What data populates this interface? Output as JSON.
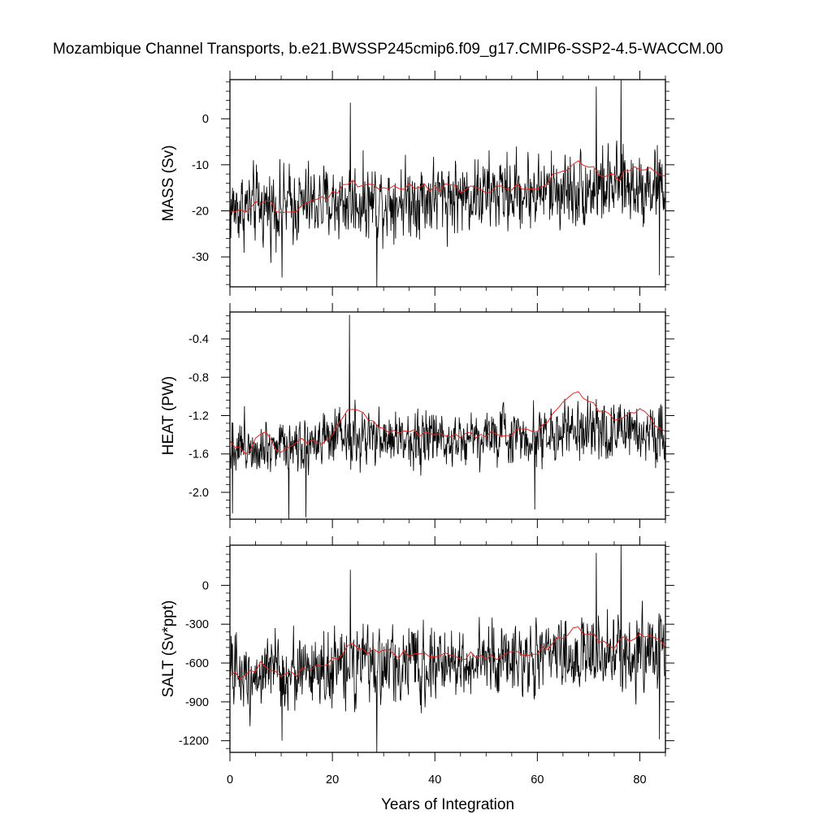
{
  "title": "Mozambique Channel Transports, b.e21.BWSSP245cmip6.f09_g17.CMIP6-SSP2-4.5-WACCM.00",
  "xlabel": "Years of Integration",
  "colors": {
    "monthly": "#000000",
    "annual_mean": "#e8221c"
  },
  "chart_data": [
    {
      "type": "line",
      "panel": "mass",
      "ylabel": "MASS (Sv)",
      "xlim": [
        0,
        85
      ],
      "ylim": [
        -36.5,
        8.5
      ],
      "x_ticks": [
        0,
        20,
        40,
        60,
        80
      ],
      "x_tick_labels": [
        "0",
        "20",
        "40",
        "60",
        "80"
      ],
      "show_x_tick_labels": false,
      "y_ticks": [
        0,
        -10,
        -20,
        -30
      ],
      "y_tick_labels": [
        "0",
        "-10",
        "-20",
        "-30"
      ],
      "baseline": -19.5,
      "trend": 0.063,
      "amplitude": 5.6,
      "spikes": [
        [
          23.5,
          3.5
        ],
        [
          28.7,
          -36.5
        ],
        [
          76.3,
          8.5
        ],
        [
          71.5,
          7.0
        ],
        [
          83.8,
          -34.0
        ],
        [
          10.2,
          -34.5
        ]
      ],
      "annual_mean_anchors": [
        [
          0,
          -19.6
        ],
        [
          3,
          -20.0
        ],
        [
          6.5,
          -17.0
        ],
        [
          10,
          -20.8
        ],
        [
          14,
          -19.0
        ],
        [
          19,
          -17.5
        ],
        [
          23.5,
          -13.5
        ],
        [
          30,
          -15.0
        ],
        [
          40,
          -15.0
        ],
        [
          50,
          -15.5
        ],
        [
          60,
          -14.8
        ],
        [
          67.5,
          -9.5
        ],
        [
          75,
          -13.0
        ],
        [
          80.5,
          -10.5
        ],
        [
          85,
          -13.0
        ]
      ],
      "series": [
        {
          "name": "",
          "role": "monthly"
        },
        {
          "name": "",
          "role": "annual_mean"
        }
      ]
    },
    {
      "type": "line",
      "panel": "heat",
      "ylabel": "HEAT (PW)",
      "xlim": [
        0,
        85
      ],
      "ylim": [
        -2.28,
        -0.12
      ],
      "x_ticks": [
        0,
        20,
        40,
        60,
        80
      ],
      "x_tick_labels": [
        "0",
        "20",
        "40",
        "60",
        "80"
      ],
      "show_x_tick_labels": false,
      "y_ticks": [
        -0.4,
        -0.8,
        -1.2,
        -1.6,
        -2.0
      ],
      "y_tick_labels": [
        "-0.4",
        "-0.8",
        "-1.2",
        "-1.6",
        "-2.0"
      ],
      "baseline": -1.5,
      "trend": 0.0017,
      "amplitude": 0.2,
      "spikes": [
        [
          23.3,
          -0.15
        ],
        [
          11.5,
          -2.28
        ],
        [
          14.8,
          -2.26
        ],
        [
          0.5,
          -2.22
        ],
        [
          59.5,
          -2.18
        ]
      ],
      "annual_mean_anchors": [
        [
          0,
          -1.45
        ],
        [
          3,
          -1.6
        ],
        [
          6.5,
          -1.35
        ],
        [
          10,
          -1.6
        ],
        [
          14,
          -1.45
        ],
        [
          19,
          -1.48
        ],
        [
          23.5,
          -1.1
        ],
        [
          30,
          -1.35
        ],
        [
          40,
          -1.4
        ],
        [
          50,
          -1.4
        ],
        [
          60,
          -1.35
        ],
        [
          67.5,
          -0.95
        ],
        [
          75,
          -1.25
        ],
        [
          80.5,
          -1.15
        ],
        [
          85,
          -1.4
        ]
      ],
      "series": [
        {
          "name": "",
          "role": "monthly"
        },
        {
          "name": "",
          "role": "annual_mean"
        }
      ]
    },
    {
      "type": "line",
      "panel": "salt",
      "ylabel": "SALT (Sv*ppt)",
      "xlim": [
        0,
        85
      ],
      "ylim": [
        -1290,
        310
      ],
      "x_ticks": [
        0,
        20,
        40,
        60,
        80
      ],
      "x_tick_labels": [
        "0",
        "20",
        "40",
        "60",
        "80"
      ],
      "show_x_tick_labels": true,
      "y_ticks": [
        0,
        -300,
        -600,
        -900,
        -1200
      ],
      "y_tick_labels": [
        "0",
        "-300",
        "-600",
        "-900",
        "-1200"
      ],
      "baseline": -690,
      "trend": 2.2,
      "amplitude": 195,
      "spikes": [
        [
          28.7,
          -1290
        ],
        [
          23.5,
          120
        ],
        [
          76.3,
          310
        ],
        [
          71.5,
          250
        ],
        [
          83.8,
          -1190
        ],
        [
          10.2,
          -1200
        ]
      ],
      "annual_mean_anchors": [
        [
          0,
          -690
        ],
        [
          3,
          -700
        ],
        [
          6.5,
          -590
        ],
        [
          10,
          -730
        ],
        [
          14,
          -660
        ],
        [
          19,
          -610
        ],
        [
          23.5,
          -470
        ],
        [
          30,
          -530
        ],
        [
          40,
          -530
        ],
        [
          50,
          -545
        ],
        [
          60,
          -520
        ],
        [
          67.5,
          -330
        ],
        [
          75,
          -460
        ],
        [
          80.5,
          -370
        ],
        [
          85,
          -460
        ]
      ],
      "series": [
        {
          "name": "",
          "role": "monthly"
        },
        {
          "name": "",
          "role": "annual_mean"
        }
      ]
    }
  ]
}
